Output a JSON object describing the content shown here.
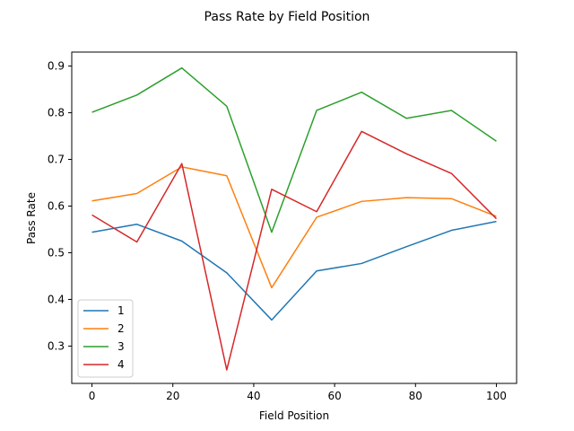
{
  "chart_data": {
    "type": "line",
    "title": "Pass Rate by Field Position",
    "xlabel": "Field Position",
    "ylabel": "Pass Rate",
    "xlim": [
      -5,
      105
    ],
    "ylim": [
      0.22,
      0.93
    ],
    "x_ticks": [
      0,
      20,
      40,
      60,
      80,
      100
    ],
    "y_ticks": [
      0.3,
      0.4,
      0.5,
      0.6,
      0.7,
      0.8,
      0.9
    ],
    "x_tick_labels": [
      "0",
      "20",
      "40",
      "60",
      "80",
      "100"
    ],
    "y_tick_labels": [
      "0.3",
      "0.4",
      "0.5",
      "0.6",
      "0.7",
      "0.8",
      "0.9"
    ],
    "grid": false,
    "legend_position": "lower-left",
    "x": [
      0,
      11.11,
      22.22,
      33.33,
      44.44,
      55.56,
      66.67,
      77.78,
      88.89,
      100
    ],
    "series": [
      {
        "name": "1",
        "color": "#1f77b4",
        "values": [
          0.544,
          0.561,
          0.525,
          0.457,
          0.356,
          0.461,
          0.477,
          0.513,
          0.548,
          0.567
        ]
      },
      {
        "name": "2",
        "color": "#ff7f0e",
        "values": [
          0.611,
          0.627,
          0.684,
          0.665,
          0.425,
          0.576,
          0.61,
          0.618,
          0.616,
          0.578
        ]
      },
      {
        "name": "3",
        "color": "#2ca02c",
        "values": [
          0.801,
          0.838,
          0.896,
          0.814,
          0.544,
          0.805,
          0.844,
          0.788,
          0.805,
          0.739
        ]
      },
      {
        "name": "4",
        "color": "#d62728",
        "values": [
          0.581,
          0.523,
          0.691,
          0.249,
          0.636,
          0.588,
          0.76,
          0.712,
          0.67,
          0.573
        ]
      }
    ]
  }
}
